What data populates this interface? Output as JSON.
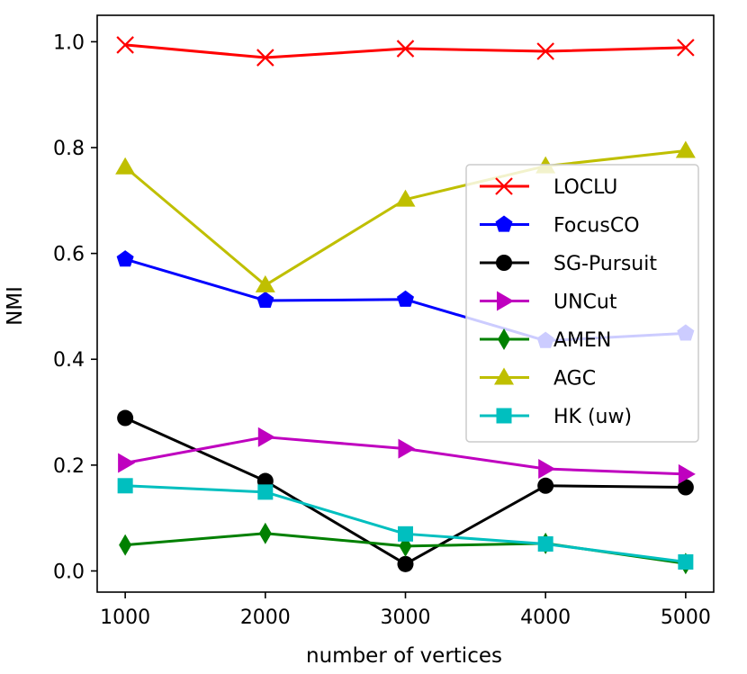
{
  "chart_data": {
    "type": "line",
    "title": "",
    "xlabel": "number of vertices",
    "ylabel": "NMI",
    "x": [
      1000,
      2000,
      3000,
      4000,
      5000
    ],
    "xticks": [
      "1000",
      "2000",
      "3000",
      "4000",
      "5000"
    ],
    "yticks": [
      "0.0",
      "0.2",
      "0.4",
      "0.6",
      "0.8",
      "1.0"
    ],
    "xlim": [
      800,
      5200
    ],
    "ylim": [
      -0.04,
      1.05
    ],
    "grid": false,
    "legend_position": "center-right",
    "series": [
      {
        "name": "LOCLU",
        "color": "#ff0000",
        "marker": "x",
        "values": [
          0.994,
          0.97,
          0.987,
          0.982,
          0.989
        ]
      },
      {
        "name": "FocusCO",
        "color": "#0000ff",
        "marker": "pentagon",
        "values": [
          0.589,
          0.511,
          0.513,
          0.435,
          0.449
        ]
      },
      {
        "name": "SG-Pursuit",
        "color": "#000000",
        "marker": "circle",
        "values": [
          0.289,
          0.17,
          0.013,
          0.161,
          0.158
        ]
      },
      {
        "name": "UNCut",
        "color": "#bf00bf",
        "marker": "triangle-right",
        "values": [
          0.204,
          0.253,
          0.231,
          0.193,
          0.183
        ]
      },
      {
        "name": "AMEN",
        "color": "#008000",
        "marker": "diamond",
        "values": [
          0.049,
          0.071,
          0.047,
          0.052,
          0.014
        ]
      },
      {
        "name": "AGC",
        "color": "#bfbf00",
        "marker": "triangle-up",
        "values": [
          0.763,
          0.54,
          0.702,
          0.765,
          0.794
        ]
      },
      {
        "name": "HK (uw)",
        "color": "#00bfbf",
        "marker": "square",
        "values": [
          0.161,
          0.149,
          0.07,
          0.051,
          0.017
        ]
      }
    ]
  }
}
